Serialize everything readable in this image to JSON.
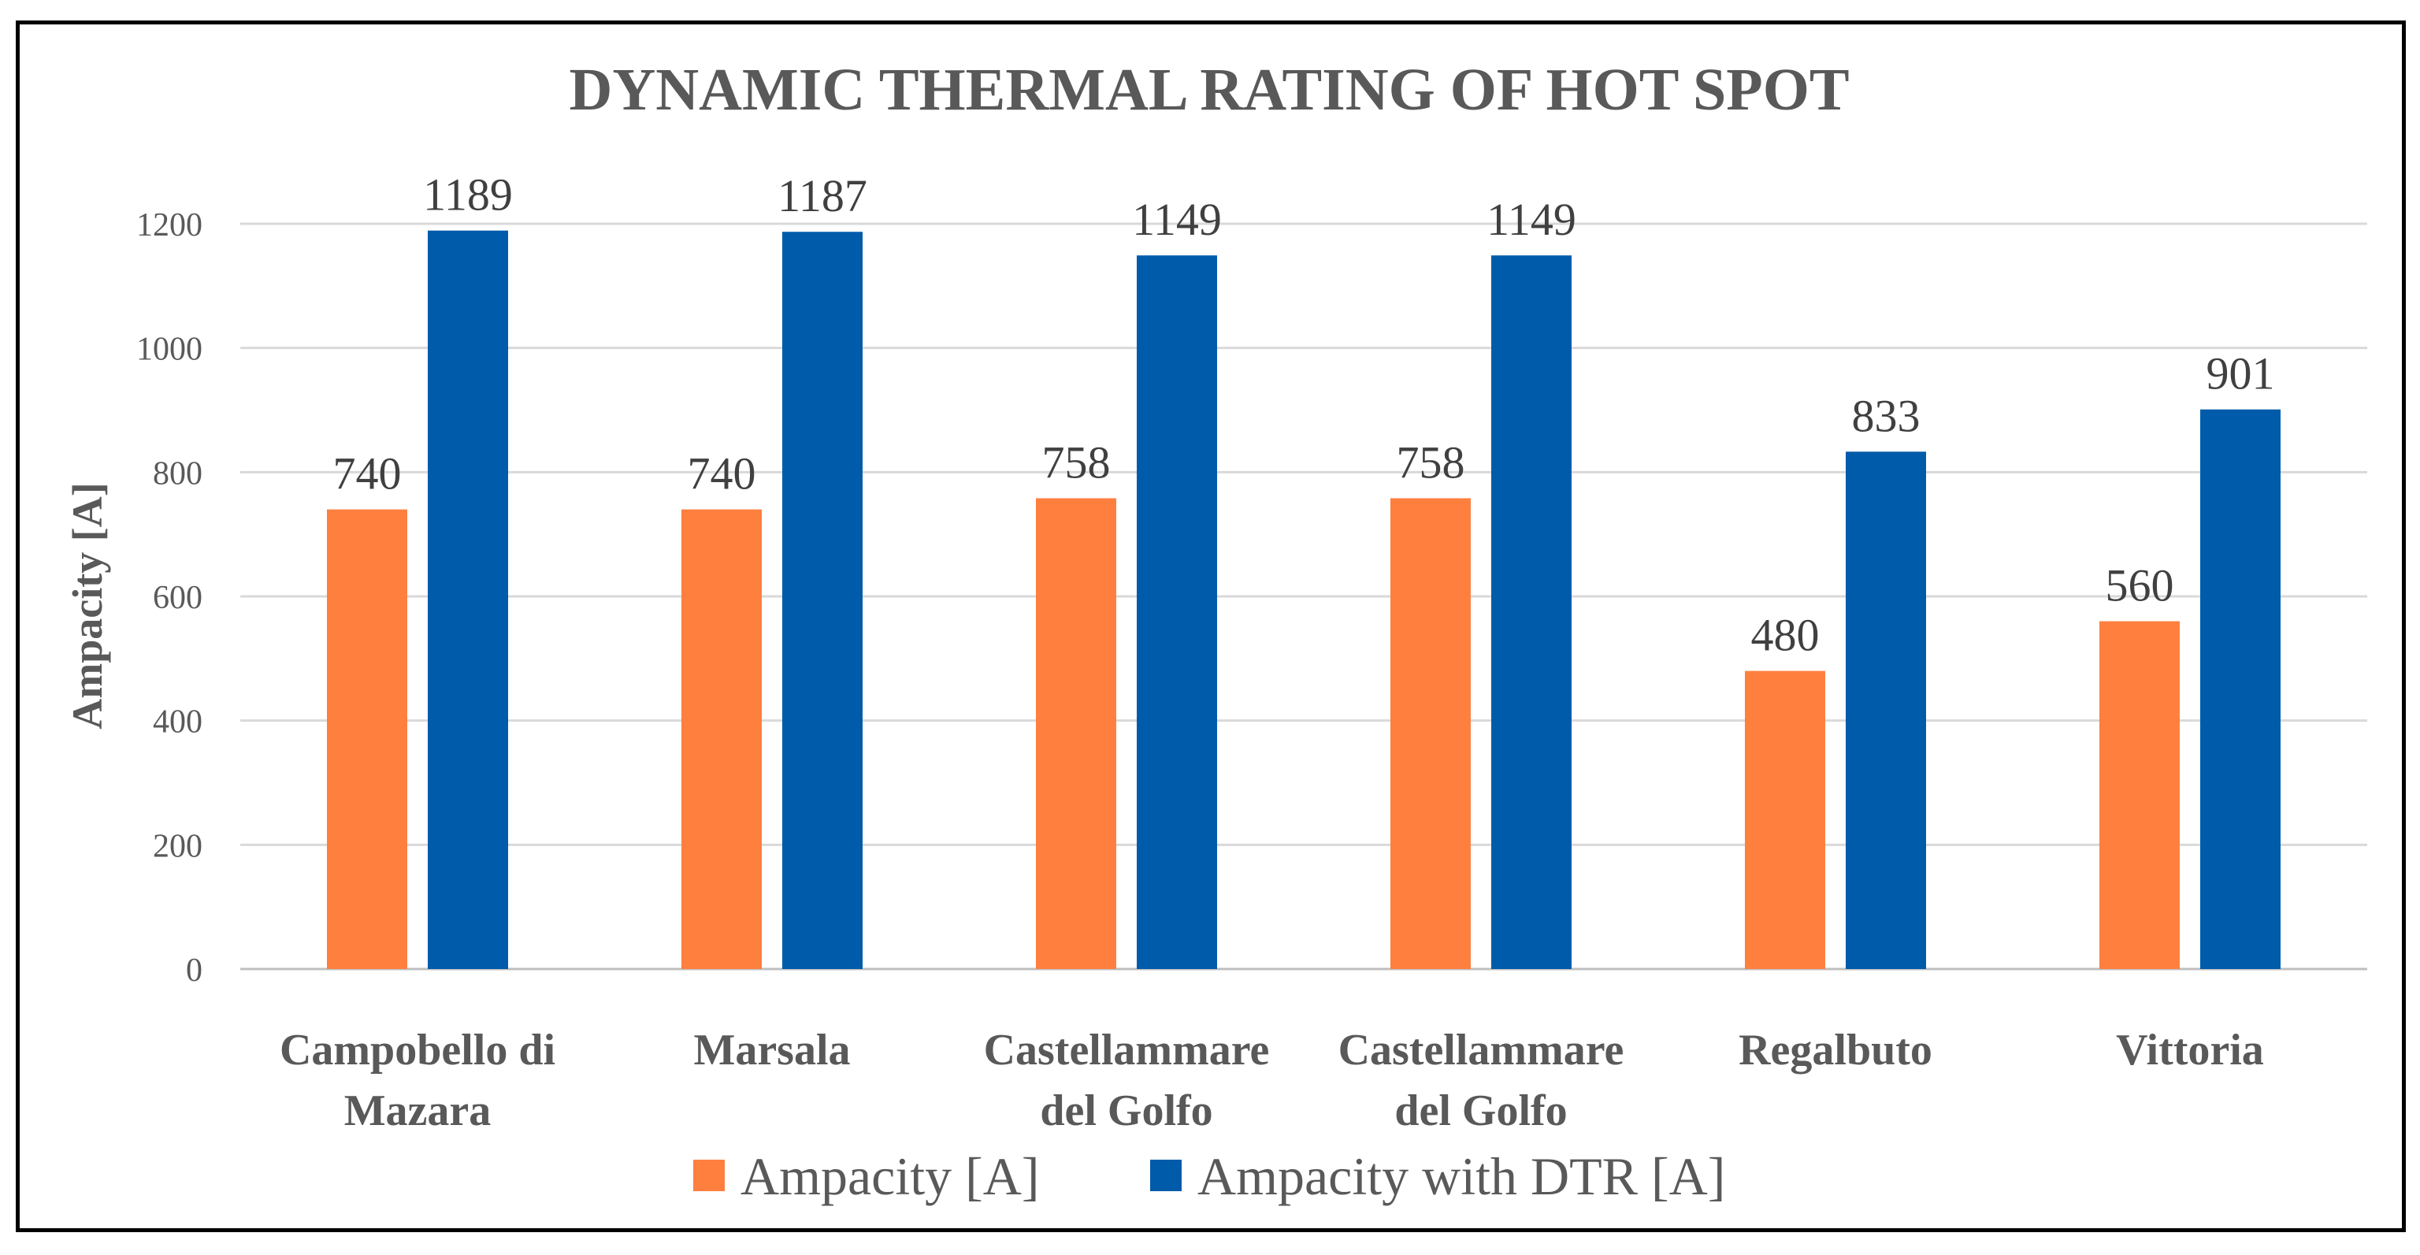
{
  "chart_data": {
    "type": "bar",
    "title": "DYNAMIC THERMAL RATING OF HOT SPOT",
    "xlabel": "",
    "ylabel": "Ampacity [A]",
    "ylim": [
      0,
      1200
    ],
    "yticks": [
      0,
      200,
      400,
      600,
      800,
      1000,
      1200
    ],
    "grid": true,
    "legend_position": "bottom",
    "categories": [
      [
        "Campobello di",
        "Mazara"
      ],
      [
        "Marsala"
      ],
      [
        "Castellammare",
        "del Golfo"
      ],
      [
        "Castellammare",
        "del Golfo"
      ],
      [
        "Regalbuto"
      ],
      [
        "Vittoria"
      ]
    ],
    "series": [
      {
        "name": "Ampacity [A]",
        "color": "#FF7F3F",
        "values": [
          740,
          740,
          758,
          758,
          480,
          560
        ]
      },
      {
        "name": "Ampacity with DTR [A]",
        "color": "#005BAA",
        "values": [
          1189,
          1187,
          1149,
          1149,
          833,
          901
        ]
      }
    ]
  }
}
